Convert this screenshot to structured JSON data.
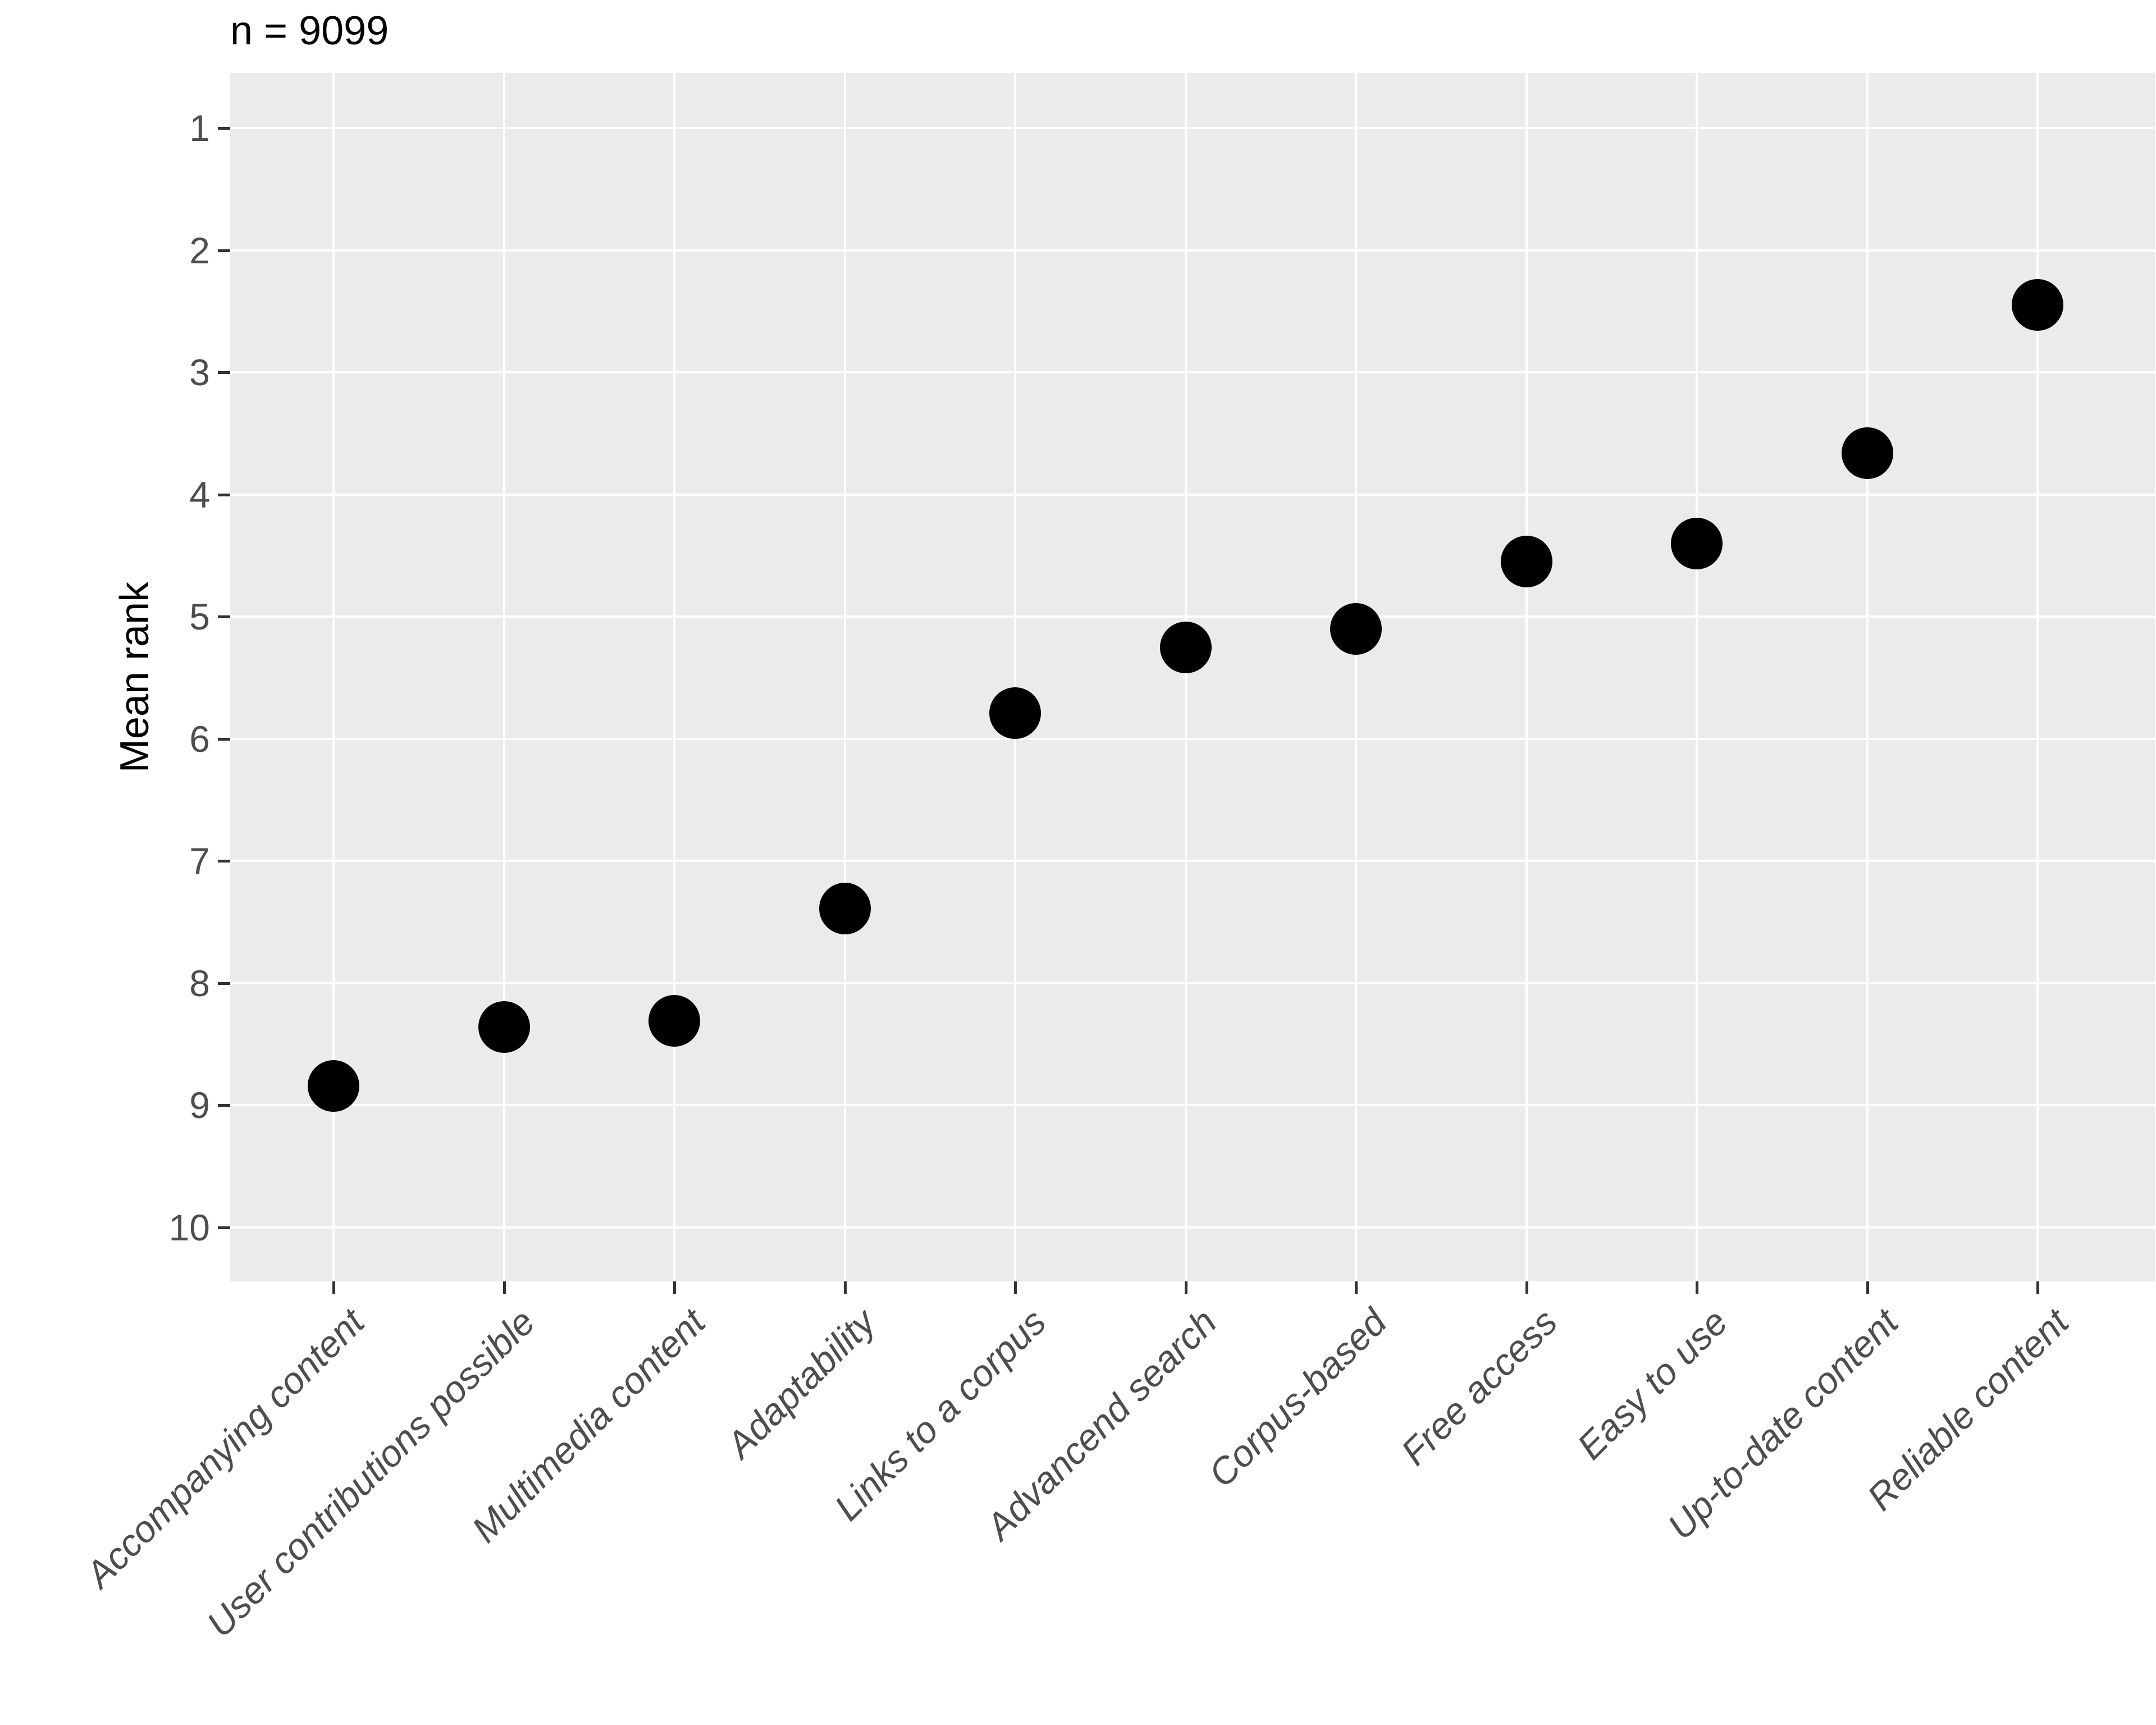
{
  "figure": {
    "title": "n = 9099",
    "y_axis_title": "Mean rank"
  },
  "colors": {
    "page_background": "#FFFFFF",
    "panel_background": "#EBEBEB",
    "gridline": "#FFFFFF",
    "point": "#000000",
    "tick_mark": "#333333",
    "tick_label": "#4D4D4D",
    "axis_title": "#000000",
    "plot_title": "#000000"
  },
  "chart_data": {
    "type": "scatter",
    "title": "n = 9099",
    "xlabel": "",
    "ylabel": "Mean rank",
    "categories": [
      "Accompanying content",
      "User contributions possible",
      "Multimedia content",
      "Adaptability",
      "Links to a corpus",
      "Advancend search",
      "Corpus-based",
      "Free access",
      "Easy to use",
      "Up-to-date content",
      "Reliable content"
    ],
    "values": [
      8.84,
      8.36,
      8.31,
      7.39,
      5.79,
      5.25,
      5.1,
      4.55,
      4.4,
      3.66,
      2.45
    ],
    "yticks": [
      1,
      2,
      3,
      4,
      5,
      6,
      7,
      8,
      9,
      10
    ],
    "ylim": [
      0.55,
      10.45
    ],
    "y_axis_reversed": true,
    "grid": "major horizontal and vertical white gridlines on grey panel, no minor gridlines",
    "legend": "none",
    "x_tick_label_rotation_deg": 45,
    "x_tick_label_style": "italic",
    "point_shape": "filled circle"
  }
}
